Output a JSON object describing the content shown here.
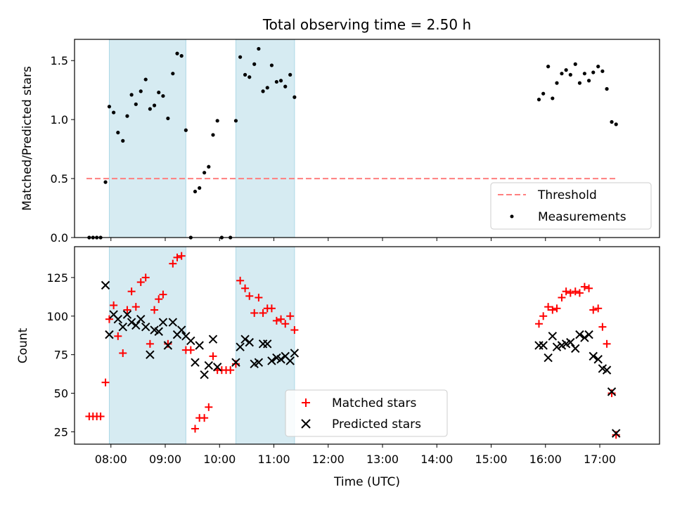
{
  "chart_data": [
    {
      "type": "scatter",
      "panel": "top",
      "title": "Total observing time = 2.50 h",
      "xlabel": "",
      "ylabel": "Matched/Predicted stars",
      "xlim": [
        7.33,
        18.1
      ],
      "ylim": [
        0,
        1.68
      ],
      "yticks": [
        0.0,
        0.5,
        1.0,
        1.5
      ],
      "ytick_labels": [
        "0.0",
        "0.5",
        "1.0",
        "1.5"
      ],
      "xticks": [
        8,
        9,
        10,
        11,
        12,
        13,
        14,
        15,
        16,
        17
      ],
      "shaded_intervals": [
        [
          7.97,
          9.38
        ],
        [
          10.3,
          11.38
        ]
      ],
      "shade_color": "#add8e6",
      "threshold": {
        "name": "Threshold",
        "y": 0.5,
        "x_range": [
          7.55,
          17.32
        ],
        "color": "#ff7f7f"
      },
      "series": [
        {
          "name": "Measurements",
          "color": "#000000",
          "points": [
            [
              7.6,
              0.0
            ],
            [
              7.67,
              0.0
            ],
            [
              7.74,
              0.0
            ],
            [
              7.81,
              0.0
            ],
            [
              7.9,
              0.47
            ],
            [
              7.97,
              1.11
            ],
            [
              8.05,
              1.06
            ],
            [
              8.13,
              0.89
            ],
            [
              8.22,
              0.82
            ],
            [
              8.3,
              1.03
            ],
            [
              8.38,
              1.21
            ],
            [
              8.46,
              1.13
            ],
            [
              8.55,
              1.24
            ],
            [
              8.64,
              1.34
            ],
            [
              8.72,
              1.09
            ],
            [
              8.8,
              1.12
            ],
            [
              8.88,
              1.23
            ],
            [
              8.96,
              1.2
            ],
            [
              9.05,
              1.01
            ],
            [
              9.14,
              1.39
            ],
            [
              9.22,
              1.56
            ],
            [
              9.3,
              1.54
            ],
            [
              9.38,
              0.91
            ],
            [
              9.47,
              0.0
            ],
            [
              9.55,
              0.39
            ],
            [
              9.63,
              0.42
            ],
            [
              9.72,
              0.55
            ],
            [
              9.8,
              0.6
            ],
            [
              9.88,
              0.87
            ],
            [
              9.96,
              0.99
            ],
            [
              10.04,
              0.0
            ],
            [
              10.2,
              0.0
            ],
            [
              10.3,
              0.99
            ],
            [
              10.38,
              1.53
            ],
            [
              10.47,
              1.38
            ],
            [
              10.55,
              1.36
            ],
            [
              10.64,
              1.47
            ],
            [
              10.72,
              1.6
            ],
            [
              10.8,
              1.24
            ],
            [
              10.88,
              1.27
            ],
            [
              10.96,
              1.46
            ],
            [
              11.05,
              1.32
            ],
            [
              11.13,
              1.33
            ],
            [
              11.21,
              1.28
            ],
            [
              11.3,
              1.38
            ],
            [
              11.38,
              1.19
            ],
            [
              15.88,
              1.17
            ],
            [
              15.96,
              1.22
            ],
            [
              16.05,
              1.45
            ],
            [
              16.13,
              1.18
            ],
            [
              16.21,
              1.31
            ],
            [
              16.3,
              1.39
            ],
            [
              16.38,
              1.42
            ],
            [
              16.46,
              1.38
            ],
            [
              16.55,
              1.47
            ],
            [
              16.63,
              1.31
            ],
            [
              16.72,
              1.39
            ],
            [
              16.8,
              1.33
            ],
            [
              16.88,
              1.4
            ],
            [
              16.97,
              1.45
            ],
            [
              17.05,
              1.41
            ],
            [
              17.13,
              1.26
            ],
            [
              17.22,
              0.98
            ],
            [
              17.3,
              0.96
            ]
          ]
        }
      ],
      "legend": [
        {
          "label": "Threshold",
          "marker": "dashed-line",
          "color": "#ff7f7f"
        },
        {
          "label": "Measurements",
          "marker": "dot",
          "color": "#000000"
        }
      ],
      "legend_position": "lower-right"
    },
    {
      "type": "scatter",
      "panel": "bottom",
      "title": "",
      "xlabel": "Time (UTC)",
      "ylabel": "Count",
      "xlim": [
        7.33,
        18.1
      ],
      "ylim": [
        17,
        145
      ],
      "yticks": [
        25,
        50,
        75,
        100,
        125
      ],
      "ytick_labels": [
        "25",
        "50",
        "75",
        "100",
        "125"
      ],
      "xticks": [
        8,
        9,
        10,
        11,
        12,
        13,
        14,
        15,
        16,
        17
      ],
      "xtick_labels": [
        "08:00",
        "09:00",
        "10:00",
        "11:00",
        "12:00",
        "13:00",
        "14:00",
        "15:00",
        "16:00",
        "17:00"
      ],
      "shaded_intervals": [
        [
          7.97,
          9.38
        ],
        [
          10.3,
          11.38
        ]
      ],
      "shade_color": "#add8e6",
      "series": [
        {
          "name": "Matched stars",
          "marker": "plus",
          "color": "#ff0000",
          "points": [
            [
              7.6,
              35
            ],
            [
              7.67,
              35
            ],
            [
              7.74,
              35
            ],
            [
              7.81,
              35
            ],
            [
              7.9,
              57
            ],
            [
              7.97,
              98
            ],
            [
              8.05,
              107
            ],
            [
              8.13,
              87
            ],
            [
              8.22,
              76
            ],
            [
              8.3,
              104
            ],
            [
              8.38,
              116
            ],
            [
              8.46,
              106
            ],
            [
              8.55,
              122
            ],
            [
              8.64,
              125
            ],
            [
              8.72,
              82
            ],
            [
              8.8,
              104
            ],
            [
              8.88,
              111
            ],
            [
              8.96,
              114
            ],
            [
              9.05,
              82
            ],
            [
              9.14,
              134
            ],
            [
              9.22,
              138
            ],
            [
              9.3,
              139
            ],
            [
              9.38,
              78
            ],
            [
              9.47,
              78
            ],
            [
              9.55,
              27
            ],
            [
              9.63,
              34
            ],
            [
              9.72,
              34
            ],
            [
              9.8,
              41
            ],
            [
              9.88,
              74
            ],
            [
              9.96,
              65
            ],
            [
              10.04,
              65
            ],
            [
              10.12,
              65
            ],
            [
              10.2,
              65
            ],
            [
              10.3,
              69
            ],
            [
              10.38,
              123
            ],
            [
              10.47,
              118
            ],
            [
              10.55,
              113
            ],
            [
              10.64,
              102
            ],
            [
              10.72,
              112
            ],
            [
              10.8,
              102
            ],
            [
              10.88,
              105
            ],
            [
              10.96,
              105
            ],
            [
              11.05,
              97
            ],
            [
              11.13,
              98
            ],
            [
              11.21,
              95
            ],
            [
              11.3,
              100
            ],
            [
              11.38,
              91
            ],
            [
              15.88,
              95
            ],
            [
              15.96,
              100
            ],
            [
              16.05,
              106
            ],
            [
              16.13,
              104
            ],
            [
              16.21,
              105
            ],
            [
              16.3,
              112
            ],
            [
              16.38,
              116
            ],
            [
              16.46,
              115
            ],
            [
              16.55,
              116
            ],
            [
              16.63,
              115
            ],
            [
              16.72,
              119
            ],
            [
              16.8,
              118
            ],
            [
              16.88,
              104
            ],
            [
              16.97,
              105
            ],
            [
              17.05,
              93
            ],
            [
              17.13,
              82
            ],
            [
              17.22,
              50
            ],
            [
              17.3,
              23
            ]
          ]
        },
        {
          "name": "Predicted stars",
          "marker": "x",
          "color": "#000000",
          "points": [
            [
              7.9,
              120
            ],
            [
              7.97,
              88
            ],
            [
              8.05,
              101
            ],
            [
              8.13,
              98
            ],
            [
              8.22,
              93
            ],
            [
              8.3,
              101
            ],
            [
              8.38,
              96
            ],
            [
              8.46,
              94
            ],
            [
              8.55,
              98
            ],
            [
              8.64,
              93
            ],
            [
              8.72,
              75
            ],
            [
              8.8,
              91
            ],
            [
              8.88,
              90
            ],
            [
              8.96,
              96
            ],
            [
              9.05,
              81
            ],
            [
              9.14,
              96
            ],
            [
              9.22,
              88
            ],
            [
              9.3,
              91
            ],
            [
              9.38,
              87
            ],
            [
              9.47,
              84
            ],
            [
              9.55,
              70
            ],
            [
              9.63,
              81
            ],
            [
              9.72,
              62
            ],
            [
              9.8,
              68
            ],
            [
              9.88,
              85
            ],
            [
              9.96,
              67
            ],
            [
              10.3,
              70
            ],
            [
              10.38,
              80
            ],
            [
              10.47,
              85
            ],
            [
              10.55,
              83
            ],
            [
              10.64,
              69
            ],
            [
              10.72,
              70
            ],
            [
              10.8,
              82
            ],
            [
              10.88,
              82
            ],
            [
              10.96,
              71
            ],
            [
              11.05,
              73
            ],
            [
              11.13,
              72
            ],
            [
              11.21,
              74
            ],
            [
              11.3,
              71
            ],
            [
              11.38,
              76
            ],
            [
              15.88,
              81
            ],
            [
              15.96,
              81
            ],
            [
              16.05,
              73
            ],
            [
              16.13,
              87
            ],
            [
              16.21,
              80
            ],
            [
              16.3,
              81
            ],
            [
              16.38,
              82
            ],
            [
              16.46,
              83
            ],
            [
              16.55,
              79
            ],
            [
              16.63,
              88
            ],
            [
              16.72,
              86
            ],
            [
              16.8,
              88
            ],
            [
              16.88,
              74
            ],
            [
              16.97,
              72
            ],
            [
              17.05,
              66
            ],
            [
              17.13,
              65
            ],
            [
              17.22,
              51
            ],
            [
              17.3,
              24
            ]
          ]
        }
      ],
      "legend": [
        {
          "label": "Matched stars",
          "marker": "plus",
          "color": "#ff0000"
        },
        {
          "label": "Predicted stars",
          "marker": "x",
          "color": "#000000"
        }
      ],
      "legend_position": "lower-center"
    }
  ]
}
